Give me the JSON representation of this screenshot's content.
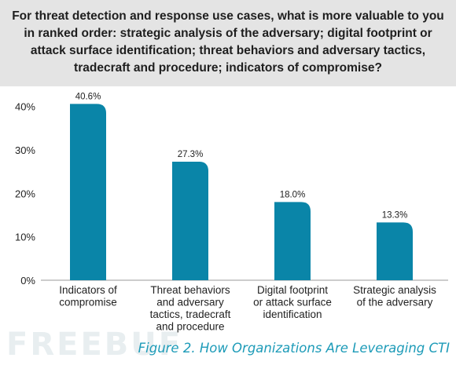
{
  "question": "For threat detection and response use cases, what is more valuable to you in ranked order: strategic analysis of the adversary; digital footprint or attack surface identification; threat behaviors and adversary tactics, tradecraft and procedure; indicators of compromise?",
  "caption": "Figure 2. How Organizations Are Leveraging CTI",
  "watermark": "FREEBUF",
  "colors": {
    "bar": "#0a85a8",
    "header_bg": "#e4e4e4",
    "caption": "#1d9bb8"
  },
  "chart_data": {
    "type": "bar",
    "title": "",
    "xlabel": "",
    "ylabel": "",
    "ylim": [
      0,
      45
    ],
    "yticks": [
      "0%",
      "10%",
      "20%",
      "30%",
      "40%"
    ],
    "grid": false,
    "categories": [
      [
        "Indicators of",
        "compromise"
      ],
      [
        "Threat behaviors",
        "and adversary",
        "tactics, tradecraft",
        "and procedure"
      ],
      [
        "Digital footprint",
        "or attack surface",
        "identification"
      ],
      [
        "Strategic analysis",
        "of the adversary"
      ]
    ],
    "values": [
      40.6,
      27.3,
      18.0,
      13.3
    ],
    "value_labels": [
      "40.6%",
      "27.3%",
      "18.0%",
      "13.3%"
    ]
  }
}
